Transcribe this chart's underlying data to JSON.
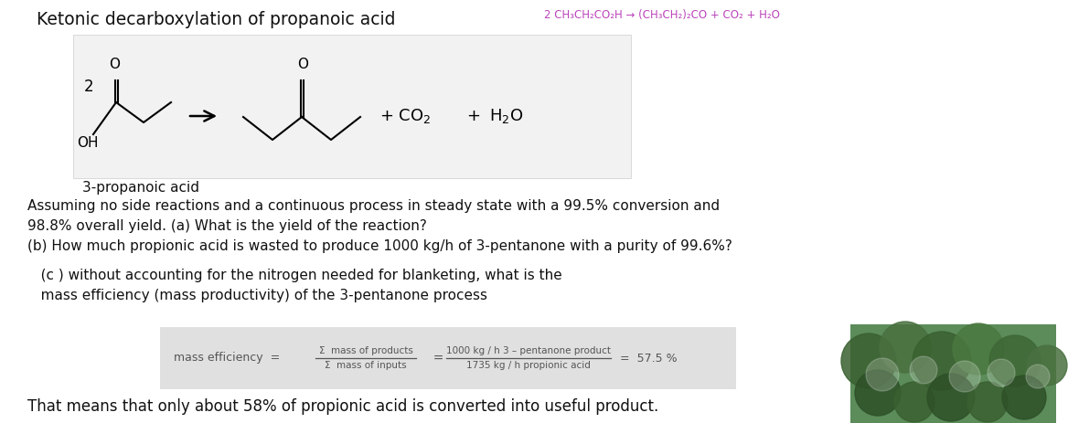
{
  "title": "Ketonic decarboxylation of propanoic acid",
  "equation_top": "2 CH₃CH₂CO₂H → (CH₃CH₂)₂CO + CO₂ + H₂O",
  "label_acid": "3-propanoic acid",
  "text_line1": "Assuming no side reactions and a continuous process in steady state with a 99.5% conversion and",
  "text_line2": "98.8% overall yield. (a) What is the yield of the reaction?",
  "text_line3": "(b) How much propionic acid is wasted to produce 1000 kg/h of 3-pentanone with a purity of 99.6%?",
  "text_c_line1": "   (c ) without accounting for the nitrogen needed for blanketing, what is the",
  "text_c_line2": "   mass efficiency (mass productivity) of the 3-pentanone process",
  "formula_label": "mass efficiency  =",
  "formula_num_top": "Σ  mass of products",
  "formula_num_bot": "Σ  mass of inputs",
  "formula_val_top": "1000 kg / h 3 – pentanone product",
  "formula_val_bot": "1735 kg / h propionic acid",
  "formula_result": "=  57.5 %",
  "text_final": "That means that only about 58% of propionic acid is converted into useful product.",
  "bg_color": "#ffffff",
  "box_bg": "#f2f2f2",
  "formula_bg": "#e0e0e0",
  "eq_color": "#bb44bb",
  "title_color": "#111111",
  "text_color": "#111111",
  "formula_text_color": "#555555",
  "image_bg": "#3a6b3e"
}
